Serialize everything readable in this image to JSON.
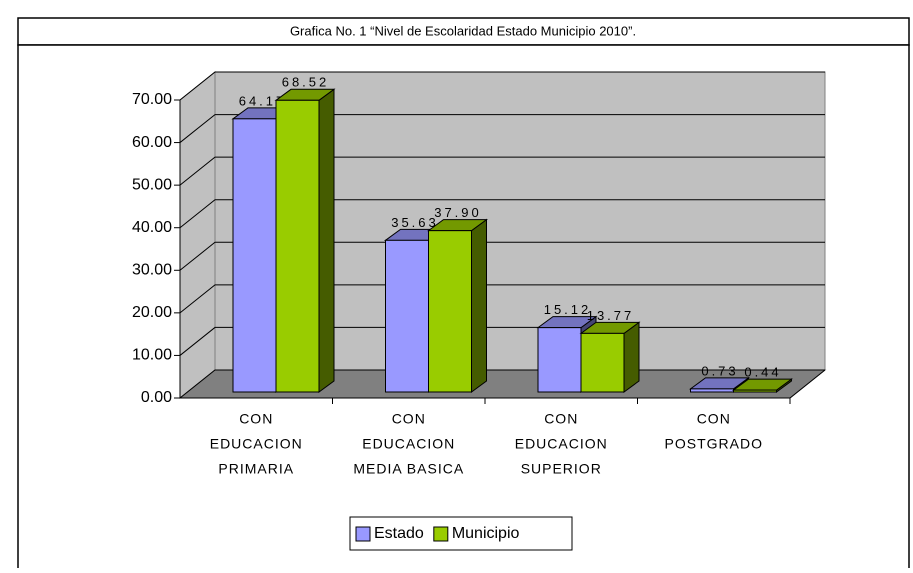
{
  "chart_data": {
    "type": "bar3d",
    "title": "Grafica No. 1 “Nivel de Escolaridad Estado Municipio 2010”.",
    "categories": [
      [
        "CON",
        "EDUCACION",
        "PRIMARIA"
      ],
      [
        "CON",
        "EDUCACION",
        "MEDIA BASICA"
      ],
      [
        "CON",
        "EDUCACION",
        "SUPERIOR"
      ],
      [
        "CON",
        "POSTGRADO"
      ]
    ],
    "series": [
      {
        "name": "Estado",
        "color": "#9999ff",
        "values": [
          64.17,
          35.63,
          15.12,
          0.73
        ],
        "value_labels": [
          "64.17",
          "35.63",
          "15.12",
          "0.73"
        ]
      },
      {
        "name": "Municipio",
        "color": "#99cc00",
        "values": [
          68.52,
          37.9,
          13.77,
          0.44
        ],
        "value_labels": [
          "68.52",
          "37.90",
          "13.77",
          "0.44"
        ]
      }
    ],
    "ylim": [
      0,
      70
    ],
    "yticks": [
      {
        "value": 0,
        "label": "0.00"
      },
      {
        "value": 10,
        "label": "10.00"
      },
      {
        "value": 20,
        "label": "20.00"
      },
      {
        "value": 30,
        "label": "30.00"
      },
      {
        "value": 40,
        "label": "40.00"
      },
      {
        "value": 50,
        "label": "50.00"
      },
      {
        "value": 60,
        "label": "60.00"
      },
      {
        "value": 70,
        "label": "70.00"
      }
    ],
    "grid": true,
    "legend": "bottom"
  }
}
